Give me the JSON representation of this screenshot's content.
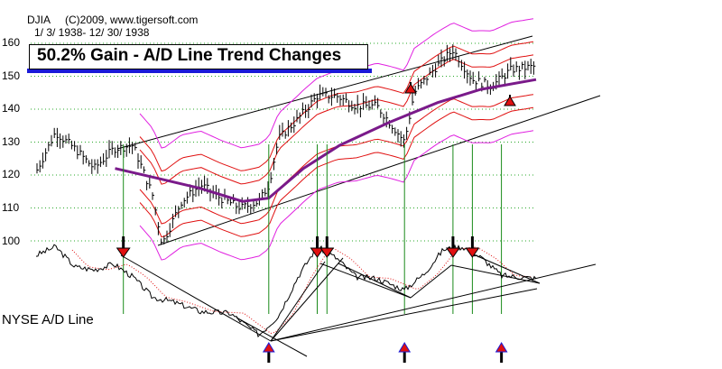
{
  "header": {
    "symbol": "DJIA",
    "copyright": "(C)2009, www.tigersoft.com",
    "date_range": "1/ 3/ 1938- 12/ 30/ 1938"
  },
  "title": "50.2% Gain - A/D Line Trend Changes",
  "ad_label": "NYSE A/D Line",
  "colors": {
    "price_bars": "#000000",
    "ma": "#7a1a8a",
    "bands_inner": "#e01010",
    "bands_outer": "#e020e0",
    "signals": "#1a8a1a",
    "title_underline": "#1a1ad8",
    "grid": "#2aa82a"
  },
  "chart_data": {
    "type": "line",
    "title": "50.2% Gain - A/D Line Trend Changes",
    "xlabel": "",
    "ylabel": "",
    "ylim": [
      95,
      160
    ],
    "yticks": [
      100,
      110,
      120,
      130,
      140,
      150,
      160
    ],
    "grid": true,
    "x_start": "1938-01-03",
    "x_end": "1938-12-30",
    "series": [
      {
        "kind": "price",
        "x": [
          "1938-01-03",
          "1938-01-17",
          "1938-01-31",
          "1938-02-14",
          "1938-02-28",
          "1938-03-14",
          "1938-03-28",
          "1938-04-04",
          "1938-04-18",
          "1938-05-02",
          "1938-05-16",
          "1938-05-31",
          "1938-06-13",
          "1938-06-20",
          "1938-06-27",
          "1938-07-11",
          "1938-07-25",
          "1938-08-08",
          "1938-08-22",
          "1938-09-06",
          "1938-09-19",
          "1938-09-26",
          "1938-10-03",
          "1938-10-17",
          "1938-10-31",
          "1938-11-14",
          "1938-11-28",
          "1938-12-12",
          "1938-12-30"
        ],
        "values": [
          121,
          133,
          128,
          122,
          128,
          129,
          114,
          99,
          112,
          117,
          113,
          110,
          112,
          117,
          131,
          137,
          144,
          144,
          141,
          141,
          134,
          130,
          145,
          152,
          158,
          149,
          147,
          152,
          153
        ]
      },
      {
        "kind": "moving-average",
        "x": [
          "1938-03-01",
          "1938-04-01",
          "1938-05-01",
          "1938-06-01",
          "1938-06-20",
          "1938-07-15",
          "1938-08-10",
          "1938-09-15",
          "1938-10-20",
          "1938-11-20",
          "1938-12-30"
        ],
        "values": [
          122,
          119,
          116,
          112,
          113,
          122,
          129,
          136,
          142,
          146,
          149
        ]
      },
      {
        "kind": "ad-line",
        "x": [
          "1938-01-03",
          "1938-01-17",
          "1938-01-31",
          "1938-02-14",
          "1938-02-28",
          "1938-03-14",
          "1938-03-28",
          "1938-04-11",
          "1938-05-02",
          "1938-05-23",
          "1938-06-13",
          "1938-06-27",
          "1938-07-11",
          "1938-07-25",
          "1938-08-08",
          "1938-08-22",
          "1938-09-06",
          "1938-09-26",
          "1938-10-10",
          "1938-10-24",
          "1938-11-07",
          "1938-11-21",
          "1938-12-05",
          "1938-12-30"
        ],
        "values": [
          46,
          52,
          38,
          36,
          40,
          31,
          17,
          14,
          7,
          6,
          -9,
          4,
          31,
          52,
          44,
          31,
          30,
          22,
          33,
          50,
          52,
          44,
          32,
          30
        ]
      }
    ],
    "signals": [
      {
        "date": "1938-03-07",
        "direction": "sell"
      },
      {
        "date": "1938-06-20",
        "direction": "buy"
      },
      {
        "date": "1938-07-25",
        "direction": "sell"
      },
      {
        "date": "1938-08-01",
        "direction": "sell"
      },
      {
        "date": "1938-09-26",
        "direction": "buy"
      },
      {
        "date": "1938-10-31",
        "direction": "sell"
      },
      {
        "date": "1938-11-14",
        "direction": "sell"
      },
      {
        "date": "1938-12-05",
        "direction": "buy"
      }
    ],
    "annotations": [
      "50.2% Gain - A/D Line Trend Changes",
      "NYSE A/D Line"
    ]
  }
}
